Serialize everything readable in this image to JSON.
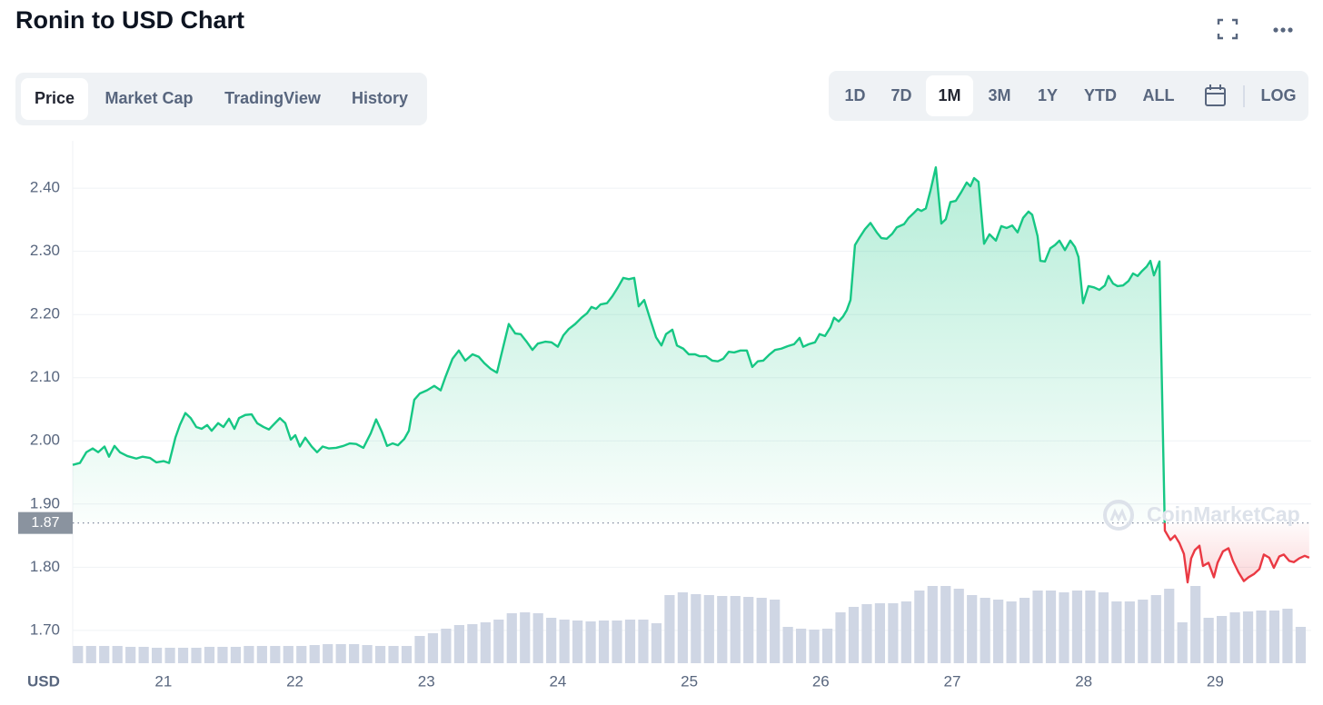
{
  "header": {
    "title": "Ronin to USD Chart"
  },
  "tabs": {
    "items": [
      "Price",
      "Market Cap",
      "TradingView",
      "History"
    ],
    "selected": 0
  },
  "ranges": {
    "items": [
      "1D",
      "7D",
      "1M",
      "3M",
      "1Y",
      "YTD",
      "ALL"
    ],
    "selected": 2,
    "log_label": "LOG"
  },
  "watermark": "CoinMarketCap",
  "chart_data": {
    "type": "line",
    "y_axis_label": "USD",
    "x": [
      20.31,
      20.365,
      20.414,
      20.462,
      20.504,
      20.552,
      20.586,
      20.628,
      20.669,
      20.725,
      20.794,
      20.842,
      20.897,
      20.946,
      21.001,
      21.043,
      21.091,
      21.125,
      21.167,
      21.208,
      21.25,
      21.291,
      21.333,
      21.367,
      21.416,
      21.457,
      21.499,
      21.54,
      21.575,
      21.623,
      21.671,
      21.713,
      21.761,
      21.803,
      21.83,
      21.886,
      21.927,
      21.969,
      22.003,
      22.038,
      22.079,
      22.128,
      22.169,
      22.211,
      22.259,
      22.314,
      22.369,
      22.418,
      22.466,
      22.521,
      22.577,
      22.618,
      22.66,
      22.701,
      22.743,
      22.784,
      22.832,
      22.867,
      22.908,
      22.95,
      23.005,
      23.06,
      23.109,
      23.143,
      23.199,
      23.247,
      23.296,
      23.351,
      23.399,
      23.441,
      23.489,
      23.537,
      23.579,
      23.627,
      23.676,
      23.717,
      23.766,
      23.807,
      23.848,
      23.904,
      23.952,
      24,
      24.042,
      24.083,
      24.132,
      24.18,
      24.222,
      24.256,
      24.291,
      24.325,
      24.374,
      24.415,
      24.457,
      24.498,
      24.54,
      24.581,
      24.615,
      24.657,
      24.699,
      24.747,
      24.788,
      24.823,
      24.871,
      24.906,
      24.954,
      24.996,
      25.044,
      25.079,
      25.127,
      25.175,
      25.217,
      25.258,
      25.3,
      25.341,
      25.389,
      25.438,
      25.479,
      25.521,
      25.562,
      25.611,
      25.652,
      25.7,
      25.749,
      25.797,
      25.839,
      25.866,
      25.908,
      25.956,
      25.991,
      26.032,
      26.074,
      26.101,
      26.136,
      26.17,
      26.198,
      26.226,
      26.26,
      26.295,
      26.336,
      26.378,
      26.426,
      26.461,
      26.502,
      26.544,
      26.578,
      26.633,
      26.668,
      26.709,
      26.737,
      26.765,
      26.799,
      26.834,
      26.875,
      26.917,
      26.951,
      26.986,
      27.027,
      27.069,
      27.11,
      27.138,
      27.166,
      27.2,
      27.242,
      27.283,
      27.332,
      27.373,
      27.414,
      27.456,
      27.497,
      27.539,
      27.58,
      27.608,
      27.649,
      27.67,
      27.705,
      27.746,
      27.781,
      27.815,
      27.857,
      27.898,
      27.933,
      27.96,
      27.995,
      28.036,
      28.078,
      28.119,
      28.161,
      28.188,
      28.223,
      28.257,
      28.299,
      28.34,
      28.375,
      28.41,
      28.444,
      28.479,
      28.507,
      28.534,
      28.576,
      28.617,
      28.659,
      28.693,
      28.728,
      28.762,
      28.79,
      28.817,
      28.845,
      28.88,
      28.907,
      28.949,
      28.99,
      29.018,
      29.059,
      29.101,
      29.135,
      29.177,
      29.218,
      29.253,
      29.294,
      29.336,
      29.37,
      29.411,
      29.446,
      29.487,
      29.522,
      29.563,
      29.598,
      29.639,
      29.681,
      29.715
    ],
    "values": [
      1.962,
      1.965,
      1.982,
      1.988,
      1.982,
      1.991,
      1.975,
      1.992,
      1.982,
      1.976,
      1.972,
      1.975,
      1.973,
      1.966,
      1.968,
      1.965,
      2.005,
      2.025,
      2.044,
      2.036,
      2.022,
      2.019,
      2.025,
      2.016,
      2.028,
      2.022,
      2.035,
      2.019,
      2.036,
      2.041,
      2.042,
      2.028,
      2.022,
      2.018,
      2.024,
      2.036,
      2.028,
      2.002,
      2.009,
      1.991,
      2.005,
      1.991,
      1.982,
      1.991,
      1.988,
      1.989,
      1.992,
      1.996,
      1.995,
      1.989,
      2.012,
      2.034,
      2.015,
      1.992,
      1.996,
      1.993,
      2.003,
      2.016,
      2.065,
      2.075,
      2.08,
      2.087,
      2.08,
      2.1,
      2.13,
      2.143,
      2.127,
      2.137,
      2.133,
      2.123,
      2.114,
      2.108,
      2.144,
      2.185,
      2.17,
      2.169,
      2.156,
      2.144,
      2.154,
      2.157,
      2.156,
      2.149,
      2.167,
      2.177,
      2.185,
      2.195,
      2.202,
      2.212,
      2.209,
      2.216,
      2.218,
      2.229,
      2.243,
      2.258,
      2.256,
      2.258,
      2.213,
      2.223,
      2.195,
      2.164,
      2.151,
      2.169,
      2.176,
      2.151,
      2.146,
      2.137,
      2.137,
      2.134,
      2.134,
      2.127,
      2.126,
      2.13,
      2.141,
      2.14,
      2.143,
      2.143,
      2.117,
      2.126,
      2.127,
      2.137,
      2.144,
      2.146,
      2.15,
      2.153,
      2.163,
      2.149,
      2.153,
      2.156,
      2.169,
      2.166,
      2.18,
      2.195,
      2.189,
      2.197,
      2.207,
      2.223,
      2.31,
      2.322,
      2.335,
      2.345,
      2.33,
      2.321,
      2.32,
      2.328,
      2.338,
      2.343,
      2.353,
      2.361,
      2.367,
      2.364,
      2.368,
      2.396,
      2.433,
      2.344,
      2.351,
      2.378,
      2.38,
      2.394,
      2.409,
      2.403,
      2.416,
      2.41,
      2.312,
      2.327,
      2.317,
      2.34,
      2.337,
      2.341,
      2.33,
      2.353,
      2.363,
      2.358,
      2.324,
      2.285,
      2.284,
      2.305,
      2.31,
      2.317,
      2.302,
      2.317,
      2.307,
      2.291,
      2.218,
      2.245,
      2.243,
      2.239,
      2.246,
      2.261,
      2.249,
      2.245,
      2.246,
      2.253,
      2.265,
      2.261,
      2.269,
      2.276,
      2.285,
      2.262,
      2.284,
      1.858,
      1.843,
      1.85,
      1.838,
      1.821,
      1.776,
      1.814,
      1.827,
      1.834,
      1.802,
      1.807,
      1.784,
      1.807,
      1.825,
      1.83,
      1.81,
      1.792,
      1.778,
      1.784,
      1.789,
      1.797,
      1.82,
      1.815,
      1.799,
      1.817,
      1.82,
      1.81,
      1.808,
      1.814,
      1.818,
      1.815
    ],
    "color_up": "#16c784",
    "color_down": "#ea3943",
    "baseline": 1.87,
    "volume": {
      "color": "#cfd6e4",
      "x": [
        20.35,
        20.45,
        20.55,
        20.65,
        20.75,
        20.85,
        20.95,
        21.05,
        21.15,
        21.25,
        21.35,
        21.45,
        21.55,
        21.65,
        21.75,
        21.85,
        21.95,
        22.05,
        22.15,
        22.25,
        22.35,
        22.45,
        22.55,
        22.65,
        22.75,
        22.85,
        22.95,
        23.05,
        23.15,
        23.25,
        23.35,
        23.45,
        23.55,
        23.65,
        23.75,
        23.85,
        23.95,
        24.05,
        24.15,
        24.25,
        24.35,
        24.45,
        24.55,
        24.65,
        24.75,
        24.85,
        24.95,
        25.05,
        25.15,
        25.25,
        25.35,
        25.45,
        25.55,
        25.65,
        25.75,
        25.85,
        25.95,
        26.05,
        26.15,
        26.25,
        26.35,
        26.45,
        26.55,
        26.65,
        26.75,
        26.85,
        26.95,
        27.05,
        27.15,
        27.25,
        27.35,
        27.45,
        27.55,
        27.65,
        27.75,
        27.85,
        27.95,
        28.05,
        28.15,
        28.25,
        28.35,
        28.45,
        28.55,
        28.65,
        28.75,
        28.85,
        28.95,
        29.05,
        29.15,
        29.25,
        29.35,
        29.45,
        29.55,
        29.65
      ],
      "values": [
        19,
        19,
        19,
        19,
        18,
        18,
        17,
        17,
        17,
        17,
        18,
        18,
        18,
        19,
        19,
        19,
        19,
        19,
        20,
        21,
        21,
        21,
        20,
        19,
        19,
        19,
        30,
        33,
        38,
        42,
        43,
        45,
        48,
        55,
        56,
        55,
        50,
        48,
        47,
        46,
        47,
        47,
        48,
        48,
        44,
        75,
        78,
        76,
        75,
        74,
        74,
        73,
        72,
        70,
        40,
        38,
        37,
        38,
        56,
        62,
        65,
        66,
        66,
        68,
        80,
        85,
        85,
        82,
        75,
        72,
        70,
        68,
        72,
        80,
        80,
        78,
        80,
        80,
        78,
        68,
        68,
        70,
        75,
        82,
        45,
        85,
        50,
        52,
        56,
        57,
        58,
        58,
        60,
        40
      ]
    },
    "xlim": [
      20.31,
      29.73
    ],
    "ylim": [
      1.648,
      2.475
    ],
    "xticks": [
      21,
      22,
      23,
      24,
      25,
      26,
      27,
      28,
      29
    ],
    "yticks": [
      {
        "value": 1.7,
        "label": "1.70"
      },
      {
        "value": 1.8,
        "label": "1.80"
      },
      {
        "value": 1.9,
        "label": "1.90"
      },
      {
        "value": 2.0,
        "label": "2.00"
      },
      {
        "value": 2.1,
        "label": "2.10"
      },
      {
        "value": 2.2,
        "label": "2.20"
      },
      {
        "value": 2.3,
        "label": "2.30"
      },
      {
        "value": 2.4,
        "label": "2.40"
      }
    ],
    "grid": true
  }
}
